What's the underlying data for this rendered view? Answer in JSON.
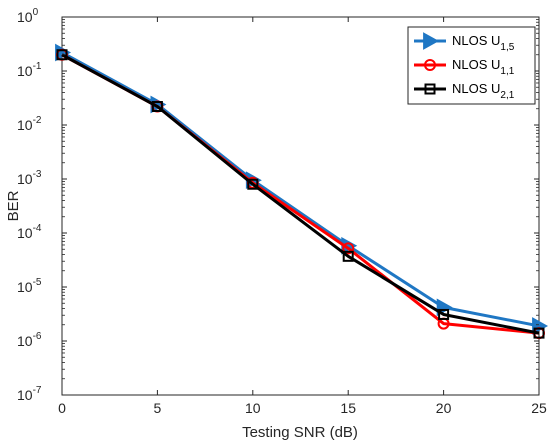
{
  "chart_data": {
    "type": "line",
    "xlabel": "Testing SNR (dB)",
    "ylabel": "BER",
    "x": [
      0,
      5,
      10,
      15,
      20,
      25
    ],
    "xlim": [
      0,
      25
    ],
    "ylim": [
      1e-07,
      1
    ],
    "yscale": "log",
    "x_ticks": [
      "0",
      "5",
      "10",
      "15",
      "20",
      "25"
    ],
    "y_ticks": [
      {
        "base": "10",
        "exp": "-7"
      },
      {
        "base": "10",
        "exp": "-6"
      },
      {
        "base": "10",
        "exp": "-5"
      },
      {
        "base": "10",
        "exp": "-4"
      },
      {
        "base": "10",
        "exp": "-3"
      },
      {
        "base": "10",
        "exp": "-2"
      },
      {
        "base": "10",
        "exp": "-1"
      },
      {
        "base": "10",
        "exp": "0"
      }
    ],
    "grid": false,
    "legend_position": "top-right",
    "series": [
      {
        "name_main": "NLOS U",
        "name_sub": "1,5",
        "color": "#1f77c4",
        "marker": "triangle-right",
        "values": [
          0.22,
          0.024,
          0.00095,
          5.8e-05,
          4.2e-06,
          1.9e-06
        ]
      },
      {
        "name_main": "NLOS U",
        "name_sub": "1,1",
        "color": "#ff0000",
        "marker": "circle",
        "values": [
          0.2,
          0.022,
          0.00085,
          5.2e-05,
          2.1e-06,
          1.4e-06
        ]
      },
      {
        "name_main": "NLOS U",
        "name_sub": "2,1",
        "color": "#000000",
        "marker": "square",
        "values": [
          0.2,
          0.022,
          0.0008,
          3.7e-05,
          3.1e-06,
          1.4e-06
        ]
      }
    ]
  }
}
